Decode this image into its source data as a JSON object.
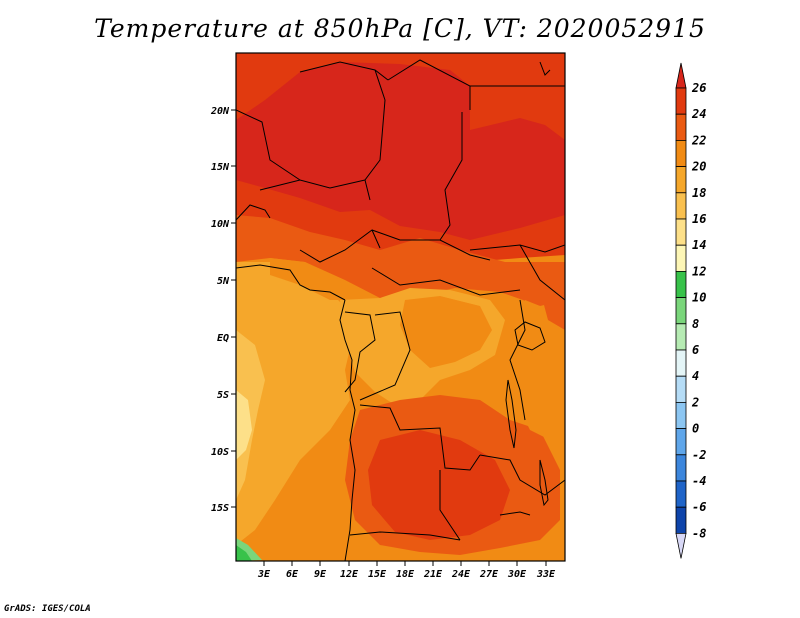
{
  "title": "Temperature at 850hPa [C], VT: 2020052915",
  "credit": "GrADS: IGES/COLA",
  "map": {
    "lat_ticks": [
      "20N",
      "15N",
      "10N",
      "5N",
      "EQ",
      "5S",
      "10S",
      "15S"
    ],
    "lon_ticks": [
      "3E",
      "6E",
      "9E",
      "12E",
      "15E",
      "18E",
      "21E",
      "24E",
      "27E",
      "30E",
      "33E"
    ]
  },
  "colorbar": {
    "labels": [
      "26",
      "24",
      "22",
      "20",
      "18",
      "16",
      "14",
      "12",
      "10",
      "8",
      "6",
      "4",
      "2",
      "0",
      "-2",
      "-4",
      "-6",
      "-8"
    ],
    "colors": {
      "gt26": "#d7261b",
      "24_26": "#e13a0f",
      "22_24": "#ea5a12",
      "20_22": "#f18b14",
      "18_20": "#f5a72b",
      "16_18": "#f9c04f",
      "14_16": "#fde089",
      "12_14": "#fdf6b6",
      "10_12": "#38c24a",
      "8_10": "#7ad67b",
      "6_8": "#b6ebb3",
      "4_6": "#e4f5f7",
      "2_4": "#b5dcf6",
      "0_2": "#8cc6f2",
      "m2_0": "#5fa6ea",
      "m4_m2": "#3c86dc",
      "m6_m4": "#1f64c8",
      "m8_m6": "#0e44aa",
      "lt_m8": "#d8d8f6"
    }
  }
}
